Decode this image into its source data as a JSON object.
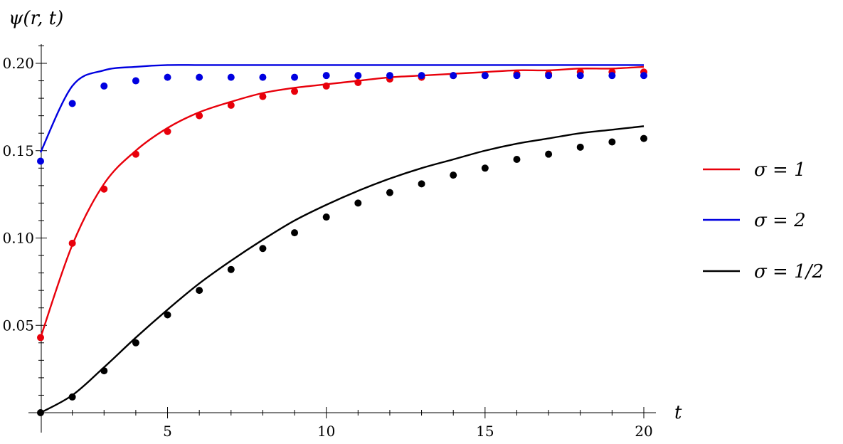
{
  "chart_data": {
    "type": "line",
    "xlabel": "t",
    "ylabel": "ψ(r, t)",
    "xlim": [
      1,
      20.3
    ],
    "ylim": [
      0,
      0.21
    ],
    "x_ticks": [
      5,
      10,
      15,
      20
    ],
    "x_tick_labels": [
      "5",
      "10",
      "15",
      "20"
    ],
    "y_ticks": [
      0.05,
      0.1,
      0.15,
      0.2
    ],
    "y_tick_labels": [
      "0.05",
      "0.10",
      "0.15",
      "0.20"
    ],
    "legend_position": "right",
    "series": [
      {
        "name": "σ = 1",
        "color": "#e8000b",
        "x": [
          1,
          2,
          3,
          4,
          5,
          6,
          7,
          8,
          9,
          10,
          11,
          12,
          13,
          14,
          15,
          16,
          17,
          18,
          19,
          20
        ],
        "points": [
          0.043,
          0.097,
          0.128,
          0.148,
          0.161,
          0.17,
          0.176,
          0.181,
          0.184,
          0.187,
          0.189,
          0.191,
          0.192,
          0.193,
          0.193,
          0.194,
          0.194,
          0.195,
          0.195,
          0.195
        ],
        "curve": [
          0.043,
          0.096,
          0.131,
          0.15,
          0.163,
          0.172,
          0.178,
          0.183,
          0.186,
          0.188,
          0.19,
          0.192,
          0.193,
          0.194,
          0.195,
          0.196,
          0.196,
          0.197,
          0.197,
          0.198
        ]
      },
      {
        "name": "σ = 2",
        "color": "#0000e0",
        "x": [
          1,
          2,
          3,
          4,
          5,
          6,
          7,
          8,
          9,
          10,
          11,
          12,
          13,
          14,
          15,
          16,
          17,
          18,
          19,
          20
        ],
        "points": [
          0.144,
          0.177,
          0.187,
          0.19,
          0.192,
          0.192,
          0.192,
          0.192,
          0.192,
          0.193,
          0.193,
          0.193,
          0.193,
          0.193,
          0.193,
          0.193,
          0.193,
          0.193,
          0.193,
          0.193
        ],
        "curve": [
          0.149,
          0.187,
          0.196,
          0.198,
          0.199,
          0.199,
          0.199,
          0.199,
          0.199,
          0.199,
          0.199,
          0.199,
          0.199,
          0.199,
          0.199,
          0.199,
          0.199,
          0.199,
          0.199,
          0.199
        ]
      },
      {
        "name": "σ = 1/2",
        "color": "#000000",
        "x": [
          1,
          2,
          3,
          4,
          5,
          6,
          7,
          8,
          9,
          10,
          11,
          12,
          13,
          14,
          15,
          16,
          17,
          18,
          19,
          20
        ],
        "points": [
          0.0,
          0.009,
          0.024,
          0.04,
          0.056,
          0.07,
          0.082,
          0.094,
          0.103,
          0.112,
          0.12,
          0.126,
          0.131,
          0.136,
          0.14,
          0.145,
          0.148,
          0.152,
          0.155,
          0.157
        ],
        "curve": [
          0.0,
          0.01,
          0.026,
          0.043,
          0.059,
          0.074,
          0.087,
          0.099,
          0.11,
          0.119,
          0.127,
          0.134,
          0.14,
          0.145,
          0.15,
          0.154,
          0.157,
          0.16,
          0.162,
          0.164
        ]
      }
    ]
  }
}
